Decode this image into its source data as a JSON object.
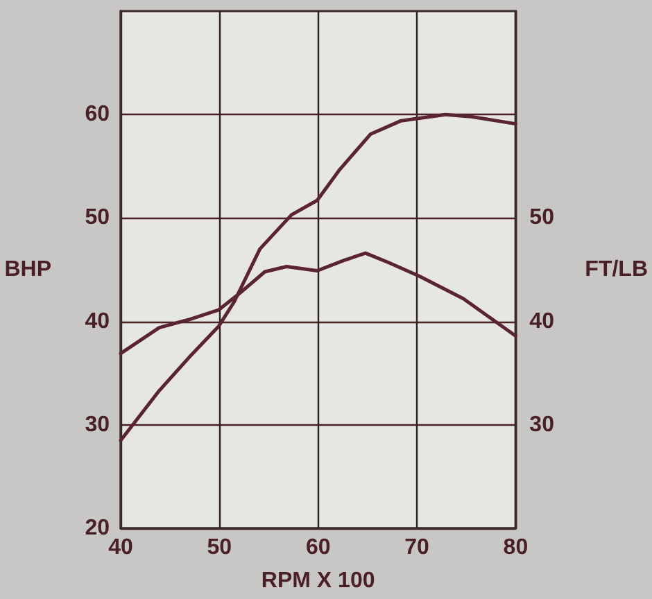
{
  "chart_data": {
    "type": "line",
    "xlabel": "RPM X 100",
    "ylabel": "BHP",
    "y2label": "FT/LB",
    "x": [
      40,
      43.9,
      47,
      49.9,
      51.5,
      54.1,
      57.3,
      59.9,
      62.2,
      65.3,
      68.4,
      72.9,
      75.5,
      80
    ],
    "series": [
      {
        "color": "#5a2430",
        "values": [
          28.5,
          33.3,
          36.6,
          39.5,
          41.9,
          47.0,
          50.3,
          51.7,
          54.7,
          58.1,
          59.4,
          60.0,
          59.8,
          59.1
        ]
      },
      {
        "color": "#5a2430",
        "axis": "y2",
        "x": [
          40,
          43.9,
          47,
          49.9,
          51.9,
          54.6,
          56.8,
          59.9,
          62.6,
          64.8,
          67.1,
          70.2,
          74.7,
          80
        ],
        "values": [
          36.9,
          39.4,
          40.2,
          41.1,
          42.6,
          44.8,
          45.3,
          44.9,
          45.9,
          46.6,
          45.7,
          44.4,
          42.2,
          38.6
        ]
      }
    ],
    "xlim": [
      40,
      80
    ],
    "xticks": [
      40,
      50,
      60,
      70,
      80
    ],
    "ylim": [
      20,
      70
    ],
    "yticks": [
      20,
      30,
      40,
      50,
      60
    ],
    "y2lim": [
      20,
      70
    ],
    "y2ticks": [
      30,
      40,
      50
    ],
    "grid": true,
    "marker": "none",
    "line_style": "solid"
  }
}
